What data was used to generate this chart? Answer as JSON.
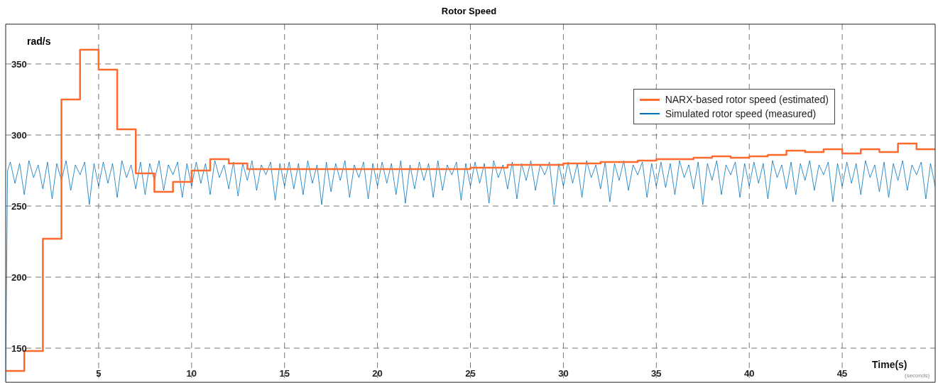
{
  "chart_data": {
    "type": "step",
    "title": "Rotor Speed",
    "ylabel": "rad/s",
    "annotations": [
      "Time(s)",
      "(seconds)"
    ],
    "xlim": [
      0,
      50
    ],
    "ylim": [
      126,
      378
    ],
    "xticks": [
      5,
      10,
      15,
      20,
      25,
      30,
      35,
      40,
      45
    ],
    "yticks": [
      150,
      200,
      250,
      300,
      350
    ],
    "grid": true,
    "legend": "top right",
    "series": [
      {
        "name": "NARX-based rotor speed (estimated)",
        "color": "#ff6a2e",
        "x": [
          0,
          1,
          2,
          3,
          4,
          5,
          6,
          7,
          8,
          9,
          10,
          11,
          12,
          13,
          14,
          15,
          16,
          17,
          18,
          19,
          20,
          21,
          22,
          23,
          24,
          25,
          26,
          27,
          28,
          29,
          30,
          31,
          32,
          33,
          34,
          35,
          36,
          37,
          38,
          39,
          40,
          41,
          42,
          43,
          44,
          45,
          46,
          47,
          48,
          49,
          50
        ],
        "values": [
          134,
          148,
          227,
          325,
          360,
          346,
          304,
          273,
          260,
          267,
          275,
          283,
          280,
          276,
          276,
          276,
          276,
          276,
          276,
          276,
          276,
          276,
          276,
          276,
          276,
          277,
          277,
          279,
          279,
          279,
          280,
          280,
          281,
          281,
          282,
          283,
          283,
          284,
          285,
          284,
          285,
          286,
          289,
          288,
          290,
          287,
          290,
          288,
          294,
          290,
          290
        ]
      },
      {
        "name": "Simulated rotor speed (measured)",
        "color": "#0072bd",
        "type": "line",
        "x": [
          0,
          0.1,
          0.25,
          0.5,
          0.75,
          1,
          1.25,
          1.5,
          1.75,
          2,
          2.25,
          2.5,
          2.75,
          3,
          3.25,
          3.5,
          3.75,
          4,
          4.25,
          4.5,
          4.75,
          5,
          5.25,
          5.5,
          5.75,
          6,
          6.25,
          6.5,
          6.75,
          7,
          7.25,
          7.5,
          7.75,
          8,
          8.25,
          8.5,
          8.75,
          9,
          9.25,
          9.5,
          9.75,
          10,
          10.25,
          10.5,
          10.75,
          11,
          11.25,
          11.5,
          11.75,
          12,
          12.25,
          12.5,
          12.75,
          13,
          13.25,
          13.5,
          13.75,
          14,
          14.25,
          14.5,
          14.75,
          15,
          15.25,
          15.5,
          15.75,
          16,
          16.25,
          16.5,
          16.75,
          17,
          17.25,
          17.5,
          17.75,
          18,
          18.25,
          18.5,
          18.75,
          19,
          19.25,
          19.5,
          19.75,
          20,
          20.25,
          20.5,
          20.75,
          21,
          21.25,
          21.5,
          21.75,
          22,
          22.25,
          22.5,
          22.75,
          23,
          23.25,
          23.5,
          23.75,
          24,
          24.25,
          24.5,
          24.75,
          25,
          25.25,
          25.5,
          25.75,
          26,
          26.25,
          26.5,
          26.75,
          27,
          27.25,
          27.5,
          27.75,
          28,
          28.25,
          28.5,
          28.75,
          29,
          29.25,
          29.5,
          29.75,
          30,
          30.25,
          30.5,
          30.75,
          31,
          31.25,
          31.5,
          31.75,
          32,
          32.25,
          32.5,
          32.75,
          33,
          33.25,
          33.5,
          33.75,
          34,
          34.25,
          34.5,
          34.75,
          35,
          35.25,
          35.5,
          35.75,
          36,
          36.25,
          36.5,
          36.75,
          37,
          37.25,
          37.5,
          37.75,
          38,
          38.25,
          38.5,
          38.75,
          39,
          39.25,
          39.5,
          39.75,
          40,
          40.25,
          40.5,
          40.75,
          41,
          41.25,
          41.5,
          41.75,
          42,
          42.25,
          42.5,
          42.75,
          43,
          43.25,
          43.5,
          43.75,
          44,
          44.25,
          44.5,
          44.75,
          45,
          45.25,
          45.5,
          45.75,
          46,
          46.25,
          46.5,
          46.75,
          47,
          47.25,
          47.5,
          47.75,
          48,
          48.25,
          48.5,
          48.75,
          49,
          49.25,
          49.5,
          49.75,
          50
        ],
        "values": [
          127,
          275,
          281,
          266,
          280,
          258,
          282,
          270,
          279,
          262,
          281,
          255,
          280,
          268,
          282,
          261,
          279,
          272,
          281,
          251,
          280,
          264,
          281,
          266,
          280,
          256,
          282,
          270,
          279,
          262,
          281,
          258,
          280,
          268,
          282,
          261,
          279,
          272,
          281,
          256,
          280,
          264,
          281,
          266,
          280,
          258,
          282,
          270,
          279,
          262,
          281,
          257,
          280,
          268,
          282,
          261,
          279,
          272,
          281,
          254,
          280,
          264,
          281,
          262,
          280,
          258,
          282,
          266,
          279,
          251,
          281,
          260,
          280,
          268,
          282,
          256,
          279,
          270,
          281,
          255,
          280,
          264,
          281,
          266,
          280,
          258,
          282,
          252,
          279,
          262,
          281,
          268,
          280,
          256,
          282,
          261,
          279,
          272,
          281,
          254,
          280,
          264,
          281,
          266,
          280,
          252,
          282,
          270,
          279,
          262,
          281,
          255,
          280,
          268,
          282,
          261,
          279,
          272,
          281,
          251,
          280,
          264,
          281,
          266,
          280,
          256,
          282,
          270,
          279,
          262,
          281,
          253,
          280,
          268,
          282,
          261,
          279,
          272,
          281,
          256,
          280,
          264,
          281,
          263,
          280,
          258,
          282,
          270,
          279,
          262,
          281,
          251,
          280,
          268,
          282,
          258,
          279,
          272,
          281,
          256,
          280,
          264,
          281,
          266,
          280,
          255,
          282,
          270,
          279,
          262,
          281,
          258,
          280,
          268,
          282,
          261,
          279,
          272,
          281,
          253,
          280,
          264,
          281,
          266,
          280,
          258,
          282,
          270,
          279,
          260,
          281,
          256,
          280,
          268,
          282,
          261,
          279,
          272,
          281,
          255,
          280,
          264
        ]
      }
    ]
  }
}
